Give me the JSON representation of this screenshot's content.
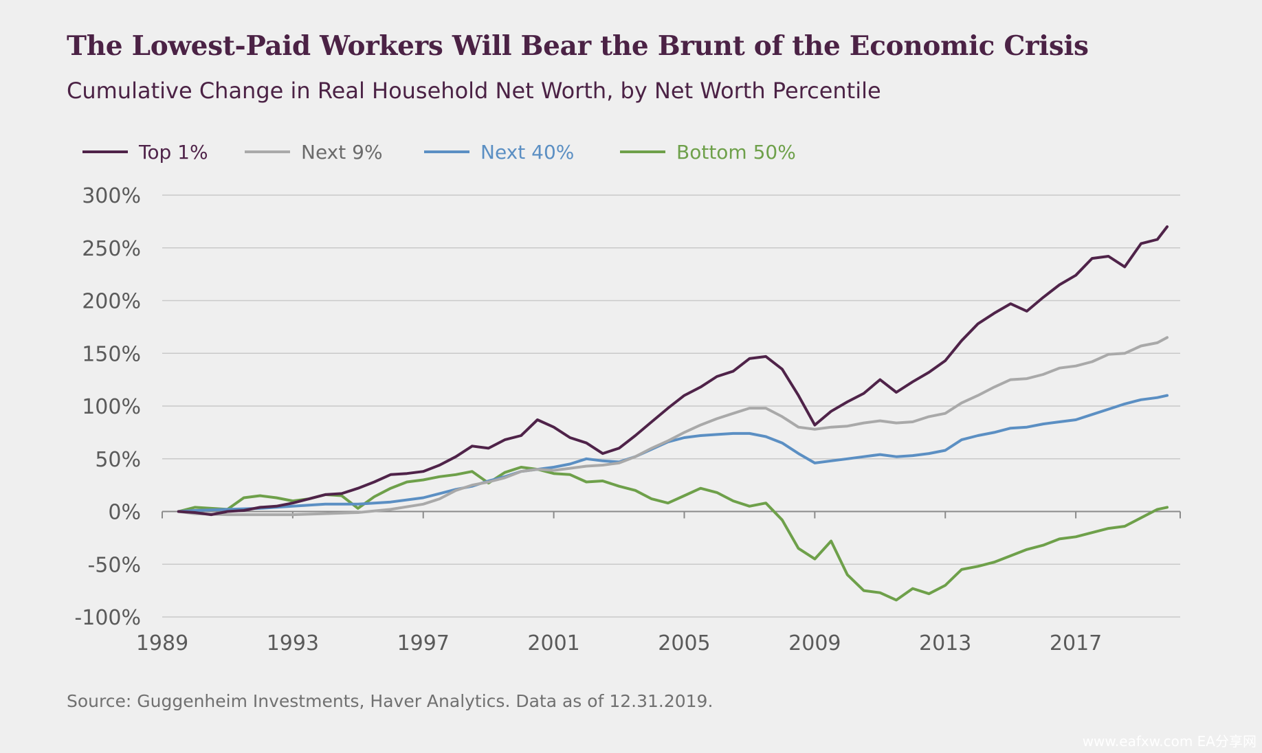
{
  "title": "The Lowest-Paid Workers Will Bear the Brunt of the Economic Crisis",
  "subtitle": "Cumulative Change in Real Household Net Worth, by Net Worth Percentile",
  "source": "Source: Guggenheim Investments, Haver Analytics. Data as of 12.31.2019.",
  "watermark": "www.eafxw.com  EA分享网",
  "chart_data": {
    "type": "line",
    "ylim": [
      -100,
      300
    ],
    "xlim": [
      1989,
      2020.2
    ],
    "y_ticks": [
      -100,
      -50,
      0,
      50,
      100,
      150,
      200,
      250,
      300
    ],
    "y_tick_labels": [
      "-100%",
      "-50%",
      "0%",
      "50%",
      "100%",
      "150%",
      "200%",
      "250%",
      "300%"
    ],
    "x_ticks": [
      1989,
      1993,
      1997,
      2001,
      2005,
      2009,
      2013,
      2017
    ],
    "x_tick_labels": [
      "1989",
      "1993",
      "1997",
      "2001",
      "2005",
      "2009",
      "2013",
      "2017"
    ],
    "grid": "horizontal",
    "legend_position": "top-left",
    "series": [
      {
        "name": "Top 1%",
        "color": "#4f2349",
        "points": [
          [
            1989.5,
            0
          ],
          [
            1990,
            -1
          ],
          [
            1990.5,
            -3
          ],
          [
            1991,
            0
          ],
          [
            1991.5,
            1
          ],
          [
            1992,
            4
          ],
          [
            1992.5,
            5
          ],
          [
            1993,
            8
          ],
          [
            1993.5,
            12
          ],
          [
            1994,
            16
          ],
          [
            1994.5,
            17
          ],
          [
            1995,
            22
          ],
          [
            1995.5,
            28
          ],
          [
            1996,
            35
          ],
          [
            1996.5,
            36
          ],
          [
            1997,
            38
          ],
          [
            1997.5,
            44
          ],
          [
            1998,
            52
          ],
          [
            1998.5,
            62
          ],
          [
            1999,
            60
          ],
          [
            1999.5,
            68
          ],
          [
            2000,
            72
          ],
          [
            2000.5,
            87
          ],
          [
            2001,
            80
          ],
          [
            2001.5,
            70
          ],
          [
            2002,
            65
          ],
          [
            2002.5,
            55
          ],
          [
            2003,
            60
          ],
          [
            2003.5,
            72
          ],
          [
            2004,
            85
          ],
          [
            2004.5,
            98
          ],
          [
            2005,
            110
          ],
          [
            2005.5,
            118
          ],
          [
            2006,
            128
          ],
          [
            2006.5,
            133
          ],
          [
            2007,
            145
          ],
          [
            2007.5,
            147
          ],
          [
            2008,
            135
          ],
          [
            2008.5,
            110
          ],
          [
            2009,
            82
          ],
          [
            2009.5,
            95
          ],
          [
            2010,
            104
          ],
          [
            2010.5,
            112
          ],
          [
            2011,
            125
          ],
          [
            2011.5,
            113
          ],
          [
            2012,
            123
          ],
          [
            2012.5,
            132
          ],
          [
            2013,
            143
          ],
          [
            2013.5,
            162
          ],
          [
            2014,
            178
          ],
          [
            2014.5,
            188
          ],
          [
            2015,
            197
          ],
          [
            2015.5,
            190
          ],
          [
            2016,
            203
          ],
          [
            2016.5,
            215
          ],
          [
            2017,
            224
          ],
          [
            2017.5,
            240
          ],
          [
            2018,
            242
          ],
          [
            2018.5,
            232
          ],
          [
            2019,
            254
          ],
          [
            2019.5,
            258
          ],
          [
            2019.8,
            270
          ]
        ]
      },
      {
        "name": "Next 9%",
        "color": "#a9a9a9",
        "points": [
          [
            1989.5,
            0
          ],
          [
            1990,
            -2
          ],
          [
            1991,
            -3
          ],
          [
            1992,
            -3
          ],
          [
            1993,
            -3
          ],
          [
            1994,
            -2
          ],
          [
            1995,
            -1
          ],
          [
            1996,
            2
          ],
          [
            1997,
            7
          ],
          [
            1997.5,
            12
          ],
          [
            1998,
            20
          ],
          [
            1998.5,
            25
          ],
          [
            1999,
            28
          ],
          [
            1999.5,
            32
          ],
          [
            2000,
            38
          ],
          [
            2000.5,
            40
          ],
          [
            2001,
            39
          ],
          [
            2001.5,
            41
          ],
          [
            2002,
            43
          ],
          [
            2002.5,
            44
          ],
          [
            2003,
            46
          ],
          [
            2003.5,
            52
          ],
          [
            2004,
            60
          ],
          [
            2004.5,
            67
          ],
          [
            2005,
            75
          ],
          [
            2005.5,
            82
          ],
          [
            2006,
            88
          ],
          [
            2006.5,
            93
          ],
          [
            2007,
            98
          ],
          [
            2007.5,
            98
          ],
          [
            2008,
            90
          ],
          [
            2008.5,
            80
          ],
          [
            2009,
            78
          ],
          [
            2009.5,
            80
          ],
          [
            2010,
            81
          ],
          [
            2010.5,
            84
          ],
          [
            2011,
            86
          ],
          [
            2011.5,
            84
          ],
          [
            2012,
            85
          ],
          [
            2012.5,
            90
          ],
          [
            2013,
            93
          ],
          [
            2013.5,
            103
          ],
          [
            2014,
            110
          ],
          [
            2014.5,
            118
          ],
          [
            2015,
            125
          ],
          [
            2015.5,
            126
          ],
          [
            2016,
            130
          ],
          [
            2016.5,
            136
          ],
          [
            2017,
            138
          ],
          [
            2017.5,
            142
          ],
          [
            2018,
            149
          ],
          [
            2018.5,
            150
          ],
          [
            2019,
            157
          ],
          [
            2019.5,
            160
          ],
          [
            2019.8,
            165
          ]
        ]
      },
      {
        "name": "Next 40%",
        "color": "#5b8fc3",
        "points": [
          [
            1989.5,
            0
          ],
          [
            1990,
            1
          ],
          [
            1991,
            2
          ],
          [
            1992,
            3
          ],
          [
            1993,
            5
          ],
          [
            1994,
            7
          ],
          [
            1995,
            7
          ],
          [
            1996,
            9
          ],
          [
            1997,
            13
          ],
          [
            1997.5,
            17
          ],
          [
            1998,
            21
          ],
          [
            1998.5,
            24
          ],
          [
            1999,
            29
          ],
          [
            1999.5,
            33
          ],
          [
            2000,
            38
          ],
          [
            2000.5,
            40
          ],
          [
            2001,
            42
          ],
          [
            2001.5,
            45
          ],
          [
            2002,
            50
          ],
          [
            2002.5,
            48
          ],
          [
            2003,
            47
          ],
          [
            2003.5,
            52
          ],
          [
            2004,
            59
          ],
          [
            2004.5,
            66
          ],
          [
            2005,
            70
          ],
          [
            2005.5,
            72
          ],
          [
            2006,
            73
          ],
          [
            2006.5,
            74
          ],
          [
            2007,
            74
          ],
          [
            2007.5,
            71
          ],
          [
            2008,
            65
          ],
          [
            2008.5,
            55
          ],
          [
            2009,
            46
          ],
          [
            2009.5,
            48
          ],
          [
            2010,
            50
          ],
          [
            2010.5,
            52
          ],
          [
            2011,
            54
          ],
          [
            2011.5,
            52
          ],
          [
            2012,
            53
          ],
          [
            2012.5,
            55
          ],
          [
            2013,
            58
          ],
          [
            2013.5,
            68
          ],
          [
            2014,
            72
          ],
          [
            2014.5,
            75
          ],
          [
            2015,
            79
          ],
          [
            2015.5,
            80
          ],
          [
            2016,
            83
          ],
          [
            2016.5,
            85
          ],
          [
            2017,
            87
          ],
          [
            2017.5,
            92
          ],
          [
            2018,
            97
          ],
          [
            2018.5,
            102
          ],
          [
            2019,
            106
          ],
          [
            2019.5,
            108
          ],
          [
            2019.8,
            110
          ]
        ]
      },
      {
        "name": "Bottom 50%",
        "color": "#6ea04a",
        "points": [
          [
            1989.5,
            0
          ],
          [
            1990,
            4
          ],
          [
            1990.5,
            3
          ],
          [
            1991,
            2
          ],
          [
            1991.5,
            13
          ],
          [
            1992,
            15
          ],
          [
            1992.5,
            13
          ],
          [
            1993,
            10
          ],
          [
            1993.5,
            12
          ],
          [
            1994,
            16
          ],
          [
            1994.5,
            15
          ],
          [
            1995,
            3
          ],
          [
            1995.5,
            14
          ],
          [
            1996,
            22
          ],
          [
            1996.5,
            28
          ],
          [
            1997,
            30
          ],
          [
            1997.5,
            33
          ],
          [
            1998,
            35
          ],
          [
            1998.5,
            38
          ],
          [
            1999,
            27
          ],
          [
            1999.5,
            37
          ],
          [
            2000,
            42
          ],
          [
            2000.5,
            40
          ],
          [
            2001,
            36
          ],
          [
            2001.5,
            35
          ],
          [
            2002,
            28
          ],
          [
            2002.5,
            29
          ],
          [
            2003,
            24
          ],
          [
            2003.5,
            20
          ],
          [
            2004,
            12
          ],
          [
            2004.5,
            8
          ],
          [
            2005,
            15
          ],
          [
            2005.5,
            22
          ],
          [
            2006,
            18
          ],
          [
            2006.5,
            10
          ],
          [
            2007,
            5
          ],
          [
            2007.5,
            8
          ],
          [
            2008,
            -8
          ],
          [
            2008.5,
            -35
          ],
          [
            2009,
            -45
          ],
          [
            2009.5,
            -28
          ],
          [
            2010,
            -60
          ],
          [
            2010.5,
            -75
          ],
          [
            2011,
            -77
          ],
          [
            2011.5,
            -84
          ],
          [
            2012,
            -73
          ],
          [
            2012.5,
            -78
          ],
          [
            2013,
            -70
          ],
          [
            2013.5,
            -55
          ],
          [
            2014,
            -52
          ],
          [
            2014.5,
            -48
          ],
          [
            2015,
            -42
          ],
          [
            2015.5,
            -36
          ],
          [
            2016,
            -32
          ],
          [
            2016.5,
            -26
          ],
          [
            2017,
            -24
          ],
          [
            2017.5,
            -20
          ],
          [
            2018,
            -16
          ],
          [
            2018.5,
            -14
          ],
          [
            2019,
            -6
          ],
          [
            2019.5,
            2
          ],
          [
            2019.8,
            4
          ]
        ]
      }
    ]
  }
}
